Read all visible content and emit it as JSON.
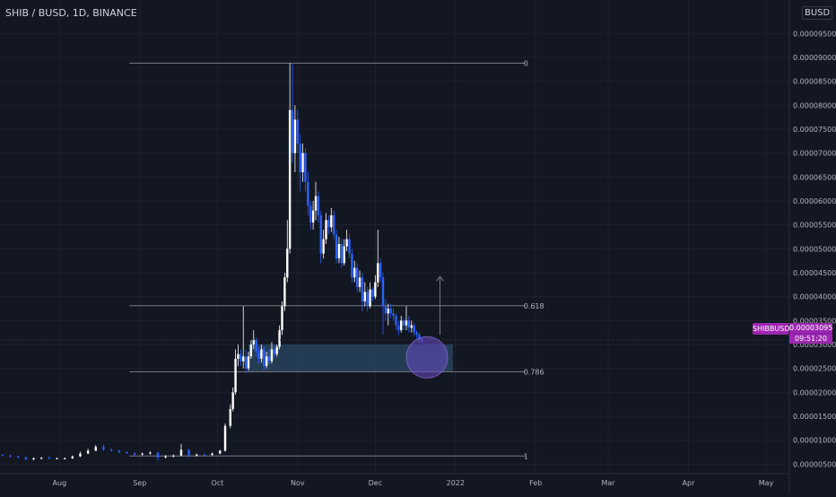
{
  "header": {
    "symbol_title": "SHIB / BUSD, 1D, BINANCE",
    "currency_badge": "BUSD"
  },
  "price_badge": {
    "label": "SHIBBUSD",
    "value": "0.00003095",
    "countdown": "09:51:20"
  },
  "colors": {
    "background": "#131722",
    "grid": "#1e222d",
    "text": "#d1d4dc",
    "axis_text": "#b2b5be",
    "candle_up": "#ffffff",
    "candle_down": "#2962ff",
    "fib_line": "#787b86",
    "zone_fill": "#2a4a66",
    "circle_fill": "#6a4bc4",
    "badge": "#9c27b0"
  },
  "chart_data": {
    "type": "candlestick",
    "title": "SHIB / BUSD, 1D, BINANCE",
    "x_ticks": [
      "Aug",
      "Sep",
      "Oct",
      "Nov",
      "Dec",
      "2022",
      "Feb",
      "Mar",
      "Apr",
      "May"
    ],
    "x_tick_dates": [
      "2021-08-01",
      "2021-09-01",
      "2021-10-01",
      "2021-11-01",
      "2021-12-01",
      "2022-01-01",
      "2022-02-01",
      "2022-03-01",
      "2022-04-01",
      "2022-05-01"
    ],
    "y_ticks": [
      "0.00000500",
      "0.00001000",
      "0.00001500",
      "0.00002000",
      "0.00002500",
      "0.00003000",
      "0.00003500",
      "0.00004000",
      "0.00004500",
      "0.00005000",
      "0.00005500",
      "0.00006000",
      "0.00006500",
      "0.00007000",
      "0.00007500",
      "0.00008000",
      "0.00008500",
      "0.00009000",
      "0.00009500"
    ],
    "ylim": [
      3e-06,
      0.000102
    ],
    "xlim": [
      "2021-07-09",
      "2022-05-10"
    ],
    "grid": true,
    "fibonacci": {
      "levels": [
        {
          "label": "0",
          "price": 8.88e-05
        },
        {
          "label": "0.618",
          "price": 3.81e-05
        },
        {
          "label": "0.786",
          "price": 2.43e-05
        },
        {
          "label": "1",
          "price": 6.7e-06
        }
      ],
      "start_date": "2021-08-28",
      "end_date": "2022-01-28"
    },
    "support_zone": {
      "top": 3e-05,
      "bottom": 2.44e-05,
      "start_date": "2021-10-13",
      "end_date": "2021-12-31"
    },
    "highlight_circle": {
      "date": "2021-12-21",
      "price": 2.73e-05
    },
    "projection_arrow": {
      "date": "2021-12-26",
      "from": 3.2e-05,
      "to": 4.42e-05
    },
    "last_price": 3.095e-05,
    "candles": [
      {
        "date": "2021-07-10",
        "open": 6.9e-06,
        "close": 6.8e-06,
        "high": 7.1e-06,
        "low": 6.6e-06
      },
      {
        "date": "2021-07-13",
        "open": 6.8e-06,
        "close": 6.6e-06,
        "high": 7e-06,
        "low": 6.4e-06
      },
      {
        "date": "2021-07-16",
        "open": 6.6e-06,
        "close": 6.4e-06,
        "high": 6.8e-06,
        "low": 6.2e-06
      },
      {
        "date": "2021-07-19",
        "open": 6.4e-06,
        "close": 6e-06,
        "high": 6.6e-06,
        "low": 5.8e-06
      },
      {
        "date": "2021-07-22",
        "open": 6e-06,
        "close": 6.2e-06,
        "high": 6.4e-06,
        "low": 5.8e-06
      },
      {
        "date": "2021-07-25",
        "open": 6.2e-06,
        "close": 6.3e-06,
        "high": 6.5e-06,
        "low": 6e-06
      },
      {
        "date": "2021-07-28",
        "open": 6.3e-06,
        "close": 6.2e-06,
        "high": 6.6e-06,
        "low": 6.1e-06
      },
      {
        "date": "2021-07-31",
        "open": 6.2e-06,
        "close": 6.2e-06,
        "high": 6.4e-06,
        "low": 6.1e-06
      },
      {
        "date": "2021-08-03",
        "open": 6.2e-06,
        "close": 6.2e-06,
        "high": 6.4e-06,
        "low": 6e-06
      },
      {
        "date": "2021-08-06",
        "open": 6.2e-06,
        "close": 6.6e-06,
        "high": 6.8e-06,
        "low": 6.1e-06
      },
      {
        "date": "2021-08-09",
        "open": 6.6e-06,
        "close": 7.2e-06,
        "high": 7.6e-06,
        "low": 6.5e-06
      },
      {
        "date": "2021-08-12",
        "open": 7.2e-06,
        "close": 7.8e-06,
        "high": 8.2e-06,
        "low": 7.1e-06
      },
      {
        "date": "2021-08-15",
        "open": 7.8e-06,
        "close": 8.6e-06,
        "high": 9e-06,
        "low": 7.7e-06
      },
      {
        "date": "2021-08-18",
        "open": 8.6e-06,
        "close": 8e-06,
        "high": 9.1e-06,
        "low": 7.8e-06
      },
      {
        "date": "2021-08-21",
        "open": 8e-06,
        "close": 7.8e-06,
        "high": 8.3e-06,
        "low": 7.6e-06
      },
      {
        "date": "2021-08-24",
        "open": 7.8e-06,
        "close": 7.5e-06,
        "high": 8e-06,
        "low": 7.2e-06
      },
      {
        "date": "2021-08-27",
        "open": 7.5e-06,
        "close": 7.3e-06,
        "high": 7.7e-06,
        "low": 7.1e-06
      },
      {
        "date": "2021-08-30",
        "open": 7.3e-06,
        "close": 7e-06,
        "high": 7.5e-06,
        "low": 6.8e-06
      },
      {
        "date": "2021-09-02",
        "open": 7e-06,
        "close": 7.2e-06,
        "high": 7.4e-06,
        "low": 6.8e-06
      },
      {
        "date": "2021-09-05",
        "open": 7.2e-06,
        "close": 7.4e-06,
        "high": 7.7e-06,
        "low": 7e-06
      },
      {
        "date": "2021-09-08",
        "open": 7.4e-06,
        "close": 6.4e-06,
        "high": 7.6e-06,
        "low": 5.6e-06
      },
      {
        "date": "2021-09-11",
        "open": 6.4e-06,
        "close": 6.6e-06,
        "high": 6.9e-06,
        "low": 6.2e-06
      },
      {
        "date": "2021-09-14",
        "open": 6.6e-06,
        "close": 6.8e-06,
        "high": 7e-06,
        "low": 6.4e-06
      },
      {
        "date": "2021-09-17",
        "open": 6.8e-06,
        "close": 8e-06,
        "high": 9.2e-06,
        "low": 6.6e-06
      },
      {
        "date": "2021-09-20",
        "open": 8e-06,
        "close": 6.8e-06,
        "high": 8.2e-06,
        "low": 6.4e-06
      },
      {
        "date": "2021-09-23",
        "open": 6.8e-06,
        "close": 7e-06,
        "high": 7.2e-06,
        "low": 6.6e-06
      },
      {
        "date": "2021-09-26",
        "open": 7e-06,
        "close": 6.9e-06,
        "high": 7.2e-06,
        "low": 6.7e-06
      },
      {
        "date": "2021-09-29",
        "open": 6.9e-06,
        "close": 7.2e-06,
        "high": 7.4e-06,
        "low": 6.8e-06
      },
      {
        "date": "2021-10-02",
        "open": 7.2e-06,
        "close": 7.8e-06,
        "high": 8e-06,
        "low": 7.1e-06
      },
      {
        "date": "2021-10-04",
        "open": 7.8e-06,
        "close": 1.3e-05,
        "high": 1.35e-05,
        "low": 7.6e-06
      },
      {
        "date": "2021-10-06",
        "open": 1.3e-05,
        "close": 1.65e-05,
        "high": 1.75e-05,
        "low": 1.25e-05
      },
      {
        "date": "2021-10-07",
        "open": 1.65e-05,
        "close": 2e-05,
        "high": 2.1e-05,
        "low": 1.6e-05
      },
      {
        "date": "2021-10-08",
        "open": 2e-05,
        "close": 2.7e-05,
        "high": 2.9e-05,
        "low": 1.95e-05
      },
      {
        "date": "2021-10-09",
        "open": 2.7e-05,
        "close": 2.8e-05,
        "high": 3e-05,
        "low": 2.55e-05
      },
      {
        "date": "2021-10-10",
        "open": 2.8e-05,
        "close": 2.65e-05,
        "high": 2.9e-05,
        "low": 2.55e-05
      },
      {
        "date": "2021-10-11",
        "open": 2.65e-05,
        "close": 2.75e-05,
        "high": 3.8e-05,
        "low": 2.5e-05
      },
      {
        "date": "2021-10-12",
        "open": 2.75e-05,
        "close": 2.5e-05,
        "high": 2.9e-05,
        "low": 2.4e-05
      },
      {
        "date": "2021-10-13",
        "open": 2.5e-05,
        "close": 2.75e-05,
        "high": 2.85e-05,
        "low": 2.45e-05
      },
      {
        "date": "2021-10-14",
        "open": 2.75e-05,
        "close": 3e-05,
        "high": 3.1e-05,
        "low": 2.7e-05
      },
      {
        "date": "2021-10-15",
        "open": 3e-05,
        "close": 3.1e-05,
        "high": 3.3e-05,
        "low": 2.9e-05
      },
      {
        "date": "2021-10-16",
        "open": 3.1e-05,
        "close": 2.85e-05,
        "high": 3.15e-05,
        "low": 2.75e-05
      },
      {
        "date": "2021-10-17",
        "open": 2.85e-05,
        "close": 2.7e-05,
        "high": 2.95e-05,
        "low": 2.6e-05
      },
      {
        "date": "2021-10-18",
        "open": 2.7e-05,
        "close": 2.9e-05,
        "high": 3e-05,
        "low": 2.62e-05
      },
      {
        "date": "2021-10-19",
        "open": 2.9e-05,
        "close": 2.55e-05,
        "high": 2.95e-05,
        "low": 2.45e-05
      },
      {
        "date": "2021-10-20",
        "open": 2.55e-05,
        "close": 2.75e-05,
        "high": 2.85e-05,
        "low": 2.5e-05
      },
      {
        "date": "2021-10-21",
        "open": 2.75e-05,
        "close": 2.65e-05,
        "high": 2.9e-05,
        "low": 2.58e-05
      },
      {
        "date": "2021-10-22",
        "open": 2.65e-05,
        "close": 2.9e-05,
        "high": 3.05e-05,
        "low": 2.6e-05
      },
      {
        "date": "2021-10-23",
        "open": 2.9e-05,
        "close": 2.8e-05,
        "high": 3e-05,
        "low": 2.72e-05
      },
      {
        "date": "2021-10-24",
        "open": 2.8e-05,
        "close": 2.95e-05,
        "high": 3e-05,
        "low": 2.75e-05
      },
      {
        "date": "2021-10-25",
        "open": 2.95e-05,
        "close": 3.3e-05,
        "high": 3.4e-05,
        "low": 2.9e-05
      },
      {
        "date": "2021-10-26",
        "open": 3.3e-05,
        "close": 3.8e-05,
        "high": 3.9e-05,
        "low": 3.2e-05
      },
      {
        "date": "2021-10-27",
        "open": 3.8e-05,
        "close": 4.4e-05,
        "high": 4.5e-05,
        "low": 3.7e-05
      },
      {
        "date": "2021-10-28",
        "open": 4.4e-05,
        "close": 5e-05,
        "high": 5.6e-05,
        "low": 4.3e-05
      },
      {
        "date": "2021-10-29",
        "open": 5e-05,
        "close": 7.9e-05,
        "high": 8.88e-05,
        "low": 4.9e-05
      },
      {
        "date": "2021-10-30",
        "open": 7.9e-05,
        "close": 7e-05,
        "high": 8.88e-05,
        "low": 6.8e-05
      },
      {
        "date": "2021-10-31",
        "open": 7e-05,
        "close": 7.7e-05,
        "high": 8e-05,
        "low": 6.6e-05
      },
      {
        "date": "2021-11-01",
        "open": 7.7e-05,
        "close": 7.2e-05,
        "high": 7.9e-05,
        "low": 7e-05
      },
      {
        "date": "2021-11-02",
        "open": 7.2e-05,
        "close": 6.6e-05,
        "high": 7.4e-05,
        "low": 6.2e-05
      },
      {
        "date": "2021-11-03",
        "open": 6.6e-05,
        "close": 7e-05,
        "high": 7.2e-05,
        "low": 6.4e-05
      },
      {
        "date": "2021-11-04",
        "open": 7e-05,
        "close": 6.4e-05,
        "high": 7.1e-05,
        "low": 6.2e-05
      },
      {
        "date": "2021-11-05",
        "open": 6.4e-05,
        "close": 5.9e-05,
        "high": 6.6e-05,
        "low": 5.7e-05
      },
      {
        "date": "2021-11-06",
        "open": 5.9e-05,
        "close": 5.55e-05,
        "high": 6e-05,
        "low": 5.4e-05
      },
      {
        "date": "2021-11-07",
        "open": 5.55e-05,
        "close": 5.8e-05,
        "high": 6e-05,
        "low": 5.4e-05
      },
      {
        "date": "2021-11-08",
        "open": 5.8e-05,
        "close": 6.1e-05,
        "high": 6.4e-05,
        "low": 5.6e-05
      },
      {
        "date": "2021-11-09",
        "open": 6.1e-05,
        "close": 5.7e-05,
        "high": 6.2e-05,
        "low": 5.55e-05
      },
      {
        "date": "2021-11-10",
        "open": 5.7e-05,
        "close": 4.9e-05,
        "high": 5.8e-05,
        "low": 4.7e-05
      },
      {
        "date": "2021-11-11",
        "open": 4.9e-05,
        "close": 5.2e-05,
        "high": 5.4e-05,
        "low": 4.8e-05
      },
      {
        "date": "2021-11-12",
        "open": 5.2e-05,
        "close": 5.6e-05,
        "high": 5.75e-05,
        "low": 5.1e-05
      },
      {
        "date": "2021-11-13",
        "open": 5.6e-05,
        "close": 5.45e-05,
        "high": 5.7e-05,
        "low": 5.3e-05
      },
      {
        "date": "2021-11-14",
        "open": 5.45e-05,
        "close": 5.7e-05,
        "high": 5.85e-05,
        "low": 5.35e-05
      },
      {
        "date": "2021-11-15",
        "open": 5.7e-05,
        "close": 5.3e-05,
        "high": 5.8e-05,
        "low": 5.2e-05
      },
      {
        "date": "2021-11-16",
        "open": 5.3e-05,
        "close": 4.8e-05,
        "high": 5.4e-05,
        "low": 4.7e-05
      },
      {
        "date": "2021-11-17",
        "open": 4.8e-05,
        "close": 5.1e-05,
        "high": 5.25e-05,
        "low": 4.7e-05
      },
      {
        "date": "2021-11-18",
        "open": 5.1e-05,
        "close": 4.7e-05,
        "high": 5.2e-05,
        "low": 4.6e-05
      },
      {
        "date": "2021-11-19",
        "open": 4.7e-05,
        "close": 5.05e-05,
        "high": 5.2e-05,
        "low": 4.65e-05
      },
      {
        "date": "2021-11-20",
        "open": 5.05e-05,
        "close": 5.2e-05,
        "high": 5.4e-05,
        "low": 4.95e-05
      },
      {
        "date": "2021-11-21",
        "open": 5.2e-05,
        "close": 4.9e-05,
        "high": 5.3e-05,
        "low": 4.8e-05
      },
      {
        "date": "2021-11-22",
        "open": 4.9e-05,
        "close": 4.4e-05,
        "high": 5e-05,
        "low": 4.3e-05
      },
      {
        "date": "2021-11-23",
        "open": 4.4e-05,
        "close": 4.6e-05,
        "high": 4.75e-05,
        "low": 4.3e-05
      },
      {
        "date": "2021-11-24",
        "open": 4.6e-05,
        "close": 4.2e-05,
        "high": 4.7e-05,
        "low": 4.1e-05
      },
      {
        "date": "2021-11-25",
        "open": 4.2e-05,
        "close": 4.4e-05,
        "high": 4.55e-05,
        "low": 4.1e-05
      },
      {
        "date": "2021-11-26",
        "open": 4.4e-05,
        "close": 3.9e-05,
        "high": 4.5e-05,
        "low": 3.7e-05
      },
      {
        "date": "2021-11-27",
        "open": 3.9e-05,
        "close": 4.1e-05,
        "high": 4.3e-05,
        "low": 3.8e-05
      },
      {
        "date": "2021-11-28",
        "open": 4.1e-05,
        "close": 3.8e-05,
        "high": 4.2e-05,
        "low": 3.7e-05
      },
      {
        "date": "2021-11-29",
        "open": 3.8e-05,
        "close": 4.15e-05,
        "high": 4.3e-05,
        "low": 3.75e-05
      },
      {
        "date": "2021-11-30",
        "open": 4.15e-05,
        "close": 4e-05,
        "high": 4.2e-05,
        "low": 3.9e-05
      },
      {
        "date": "2021-12-01",
        "open": 4e-05,
        "close": 4.3e-05,
        "high": 4.45e-05,
        "low": 3.95e-05
      },
      {
        "date": "2021-12-02",
        "open": 4.3e-05,
        "close": 4.7e-05,
        "high": 5.4e-05,
        "low": 4.2e-05
      },
      {
        "date": "2021-12-03",
        "open": 4.7e-05,
        "close": 4.4e-05,
        "high": 4.8e-05,
        "low": 4.3e-05
      },
      {
        "date": "2021-12-04",
        "open": 4.4e-05,
        "close": 3.8e-05,
        "high": 4.5e-05,
        "low": 3.2e-05
      },
      {
        "date": "2021-12-05",
        "open": 3.8e-05,
        "close": 3.65e-05,
        "high": 3.95e-05,
        "low": 3.5e-05
      },
      {
        "date": "2021-12-06",
        "open": 3.65e-05,
        "close": 3.75e-05,
        "high": 3.85e-05,
        "low": 3.4e-05
      },
      {
        "date": "2021-12-07",
        "open": 3.75e-05,
        "close": 3.65e-05,
        "high": 3.85e-05,
        "low": 3.55e-05
      },
      {
        "date": "2021-12-08",
        "open": 3.65e-05,
        "close": 3.6e-05,
        "high": 3.75e-05,
        "low": 3.5e-05
      },
      {
        "date": "2021-12-09",
        "open": 3.6e-05,
        "close": 3.4e-05,
        "high": 3.65e-05,
        "low": 3.3e-05
      },
      {
        "date": "2021-12-10",
        "open": 3.4e-05,
        "close": 3.3e-05,
        "high": 3.5e-05,
        "low": 3.2e-05
      },
      {
        "date": "2021-12-11",
        "open": 3.3e-05,
        "close": 3.5e-05,
        "high": 3.6e-05,
        "low": 3.25e-05
      },
      {
        "date": "2021-12-12",
        "open": 3.5e-05,
        "close": 3.4e-05,
        "high": 3.55e-05,
        "low": 3.3e-05
      },
      {
        "date": "2021-12-13",
        "open": 3.4e-05,
        "close": 3.5e-05,
        "high": 3.8e-05,
        "low": 3.3e-05
      },
      {
        "date": "2021-12-14",
        "open": 3.5e-05,
        "close": 3.35e-05,
        "high": 3.6e-05,
        "low": 3.25e-05
      },
      {
        "date": "2021-12-15",
        "open": 3.35e-05,
        "close": 3.4e-05,
        "high": 3.5e-05,
        "low": 3.25e-05
      },
      {
        "date": "2021-12-16",
        "open": 3.4e-05,
        "close": 3.25e-05,
        "high": 3.45e-05,
        "low": 3.18e-05
      },
      {
        "date": "2021-12-17",
        "open": 3.25e-05,
        "close": 3.2e-05,
        "high": 3.3e-05,
        "low": 3.12e-05
      },
      {
        "date": "2021-12-18",
        "open": 3.2e-05,
        "close": 3.1e-05,
        "high": 3.25e-05,
        "low": 3.05e-05
      },
      {
        "date": "2021-12-19",
        "open": 3.1e-05,
        "close": 3.09e-05,
        "high": 3.15e-05,
        "low": 3.02e-05
      }
    ]
  }
}
